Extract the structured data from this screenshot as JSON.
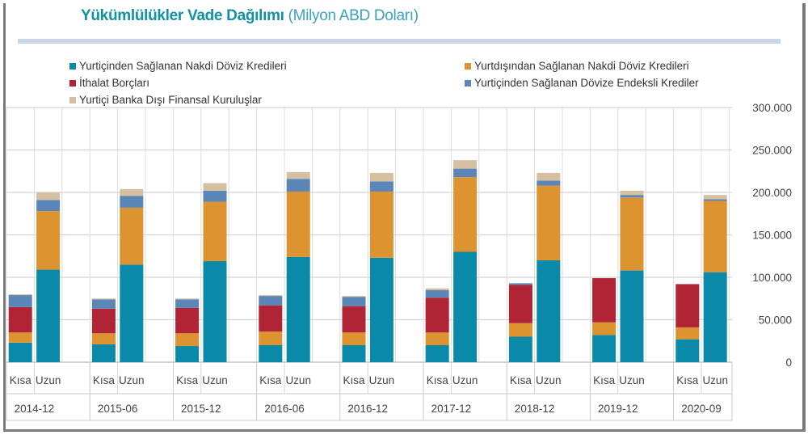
{
  "chart_data": {
    "type": "bar",
    "stacked": true,
    "title": "Yükümlülükler Vade Dağılımı",
    "subtitle": "(Milyon ABD Doları)",
    "periods": [
      "2014-12",
      "2015-06",
      "2015-12",
      "2016-06",
      "2016-12",
      "2017-12",
      "2018-12",
      "2019-12",
      "2020-09"
    ],
    "maturities": [
      "Kısa",
      "Uzun"
    ],
    "ylim": [
      0,
      300000
    ],
    "yticks": [
      "0",
      "50.000",
      "100.000",
      "150.000",
      "200.000",
      "250.000",
      "300.000"
    ],
    "grid": true,
    "legend_position": "top",
    "series": [
      {
        "name": "Yurtiçinden Sağlanan Nakdi Döviz Kredileri",
        "color": "#0a8aa8",
        "kisa": [
          23000,
          21000,
          19000,
          20000,
          20000,
          20000,
          30000,
          32000,
          27000
        ],
        "uzun": [
          109000,
          115000,
          119000,
          124000,
          123000,
          130000,
          120000,
          108000,
          106000
        ]
      },
      {
        "name": "Yurtdışından Sağlanan Nakdi Döviz Kredileri",
        "color": "#dd9330",
        "kisa": [
          12000,
          13000,
          15000,
          16000,
          15000,
          15000,
          16000,
          15000,
          14000
        ],
        "uzun": [
          69000,
          67000,
          70000,
          77000,
          78000,
          88000,
          88000,
          86000,
          84000
        ]
      },
      {
        "name": "İthalat Borçları",
        "color": "#b02436",
        "kisa": [
          30000,
          29000,
          30000,
          31000,
          31000,
          41000,
          45000,
          52000,
          51000
        ],
        "uzun": [
          0,
          0,
          0,
          0,
          0,
          0,
          0,
          0,
          0
        ]
      },
      {
        "name": "Yurtiçinden Sağlanan Dövize Endeksli Krediler",
        "color": "#5b87b8",
        "kisa": [
          14000,
          11000,
          10000,
          11000,
          11000,
          9000,
          2000,
          0,
          0
        ],
        "uzun": [
          13000,
          14000,
          13000,
          15000,
          12000,
          10000,
          6000,
          3000,
          2000
        ]
      },
      {
        "name": "Yurtiçi Banka Dışı Finansal Kuruluşlar",
        "color": "#d4c0a0",
        "kisa": [
          1000,
          1000,
          1000,
          1000,
          1000,
          2000,
          0,
          0,
          0
        ],
        "uzun": [
          9000,
          8000,
          9000,
          8000,
          10000,
          10000,
          9000,
          5000,
          5000
        ]
      }
    ]
  }
}
